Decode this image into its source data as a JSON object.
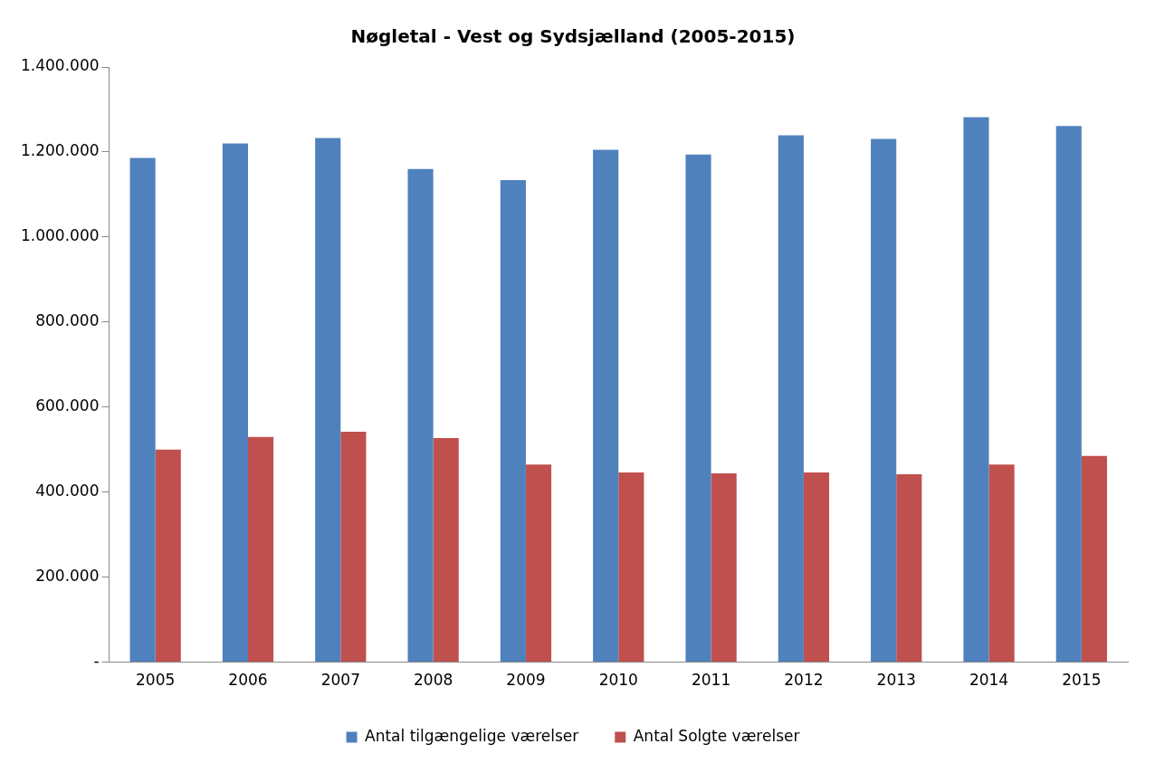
{
  "chart_data": {
    "type": "bar",
    "title": "Nøgletal - Vest og Sydsjælland (2005-2015)",
    "categories": [
      "2005",
      "2006",
      "2007",
      "2008",
      "2009",
      "2010",
      "2011",
      "2012",
      "2013",
      "2014",
      "2015"
    ],
    "series": [
      {
        "name": "Antal tilgængelige værelser",
        "color": "#4f81bd",
        "values": [
          1186000,
          1220000,
          1233000,
          1160000,
          1134000,
          1205000,
          1194000,
          1239000,
          1231000,
          1282000,
          1261000
        ]
      },
      {
        "name": "Antal Solgte værelser",
        "color": "#c0504d",
        "values": [
          500000,
          530000,
          542000,
          527000,
          465000,
          446000,
          444000,
          446000,
          442000,
          465000,
          485000
        ]
      }
    ],
    "ylim": [
      0,
      1400000
    ],
    "yticks": [
      {
        "value": 0,
        "label": "-"
      },
      {
        "value": 200000,
        "label": "200.000"
      },
      {
        "value": 400000,
        "label": "400.000"
      },
      {
        "value": 600000,
        "label": "600.000"
      },
      {
        "value": 800000,
        "label": "800.000"
      },
      {
        "value": 1000000,
        "label": "1.000.000"
      },
      {
        "value": 1200000,
        "label": "1.200.000"
      },
      {
        "value": 1400000,
        "label": "1.400.000"
      }
    ],
    "grid": false,
    "legend": "bottom"
  }
}
